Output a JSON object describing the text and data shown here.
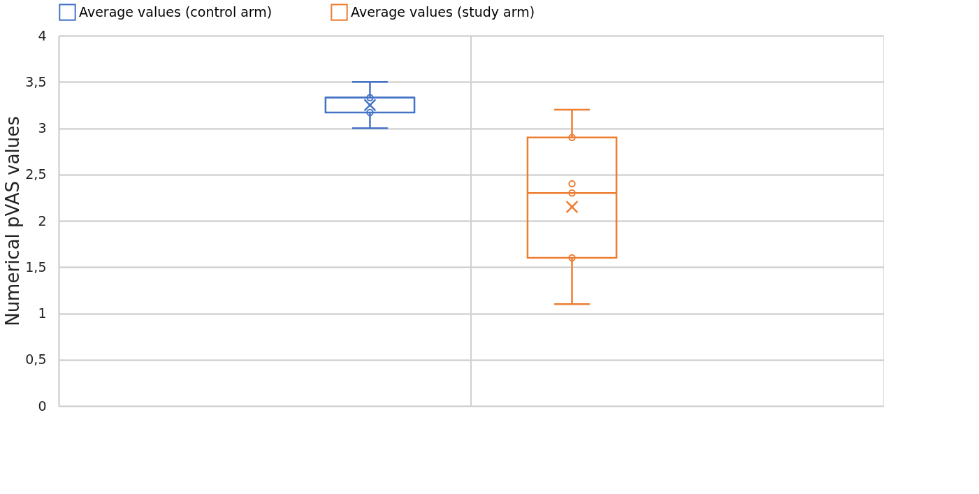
{
  "chart_data": {
    "type": "box",
    "ylabel": "Numerical pVAS values",
    "categories": [
      null
    ],
    "ylim": [
      0,
      4
    ],
    "yticks": [
      0,
      {
        "value": 0.5,
        "label": "0,5"
      },
      1,
      {
        "value": 1.5,
        "label": "1,5"
      },
      2,
      {
        "value": 2.5,
        "label": "2,5"
      },
      3,
      {
        "value": 3.5,
        "label": "3,5"
      },
      4
    ],
    "grid": true,
    "legend": "top",
    "series": [
      {
        "type": "box",
        "name": "Average values (control arm)",
        "color": "#4472c4",
        "boxes": [
          {
            "low": 3.0,
            "q1": 3.17,
            "median": 3.33,
            "q3": 3.33,
            "high": 3.5,
            "mean": 3.25
          }
        ]
      },
      {
        "type": "box",
        "name": "Average values (study arm)",
        "color": "#ed7d31",
        "boxes": [
          {
            "low": 1.1,
            "q1": 1.6,
            "median": 2.3,
            "q3": 2.9,
            "high": 3.2,
            "mean": 2.15
          }
        ]
      },
      {
        "type": "scatter",
        "color": "#4472c4",
        "marker": "circle",
        "x": [
          null,
          null
        ],
        "values": [
          3.33,
          3.17
        ]
      },
      {
        "type": "scatter",
        "color": "#ed7d31",
        "marker": "circle",
        "x": [
          null,
          null,
          null,
          null
        ],
        "values": [
          2.9,
          2.4,
          2.3,
          1.6
        ]
      }
    ]
  }
}
